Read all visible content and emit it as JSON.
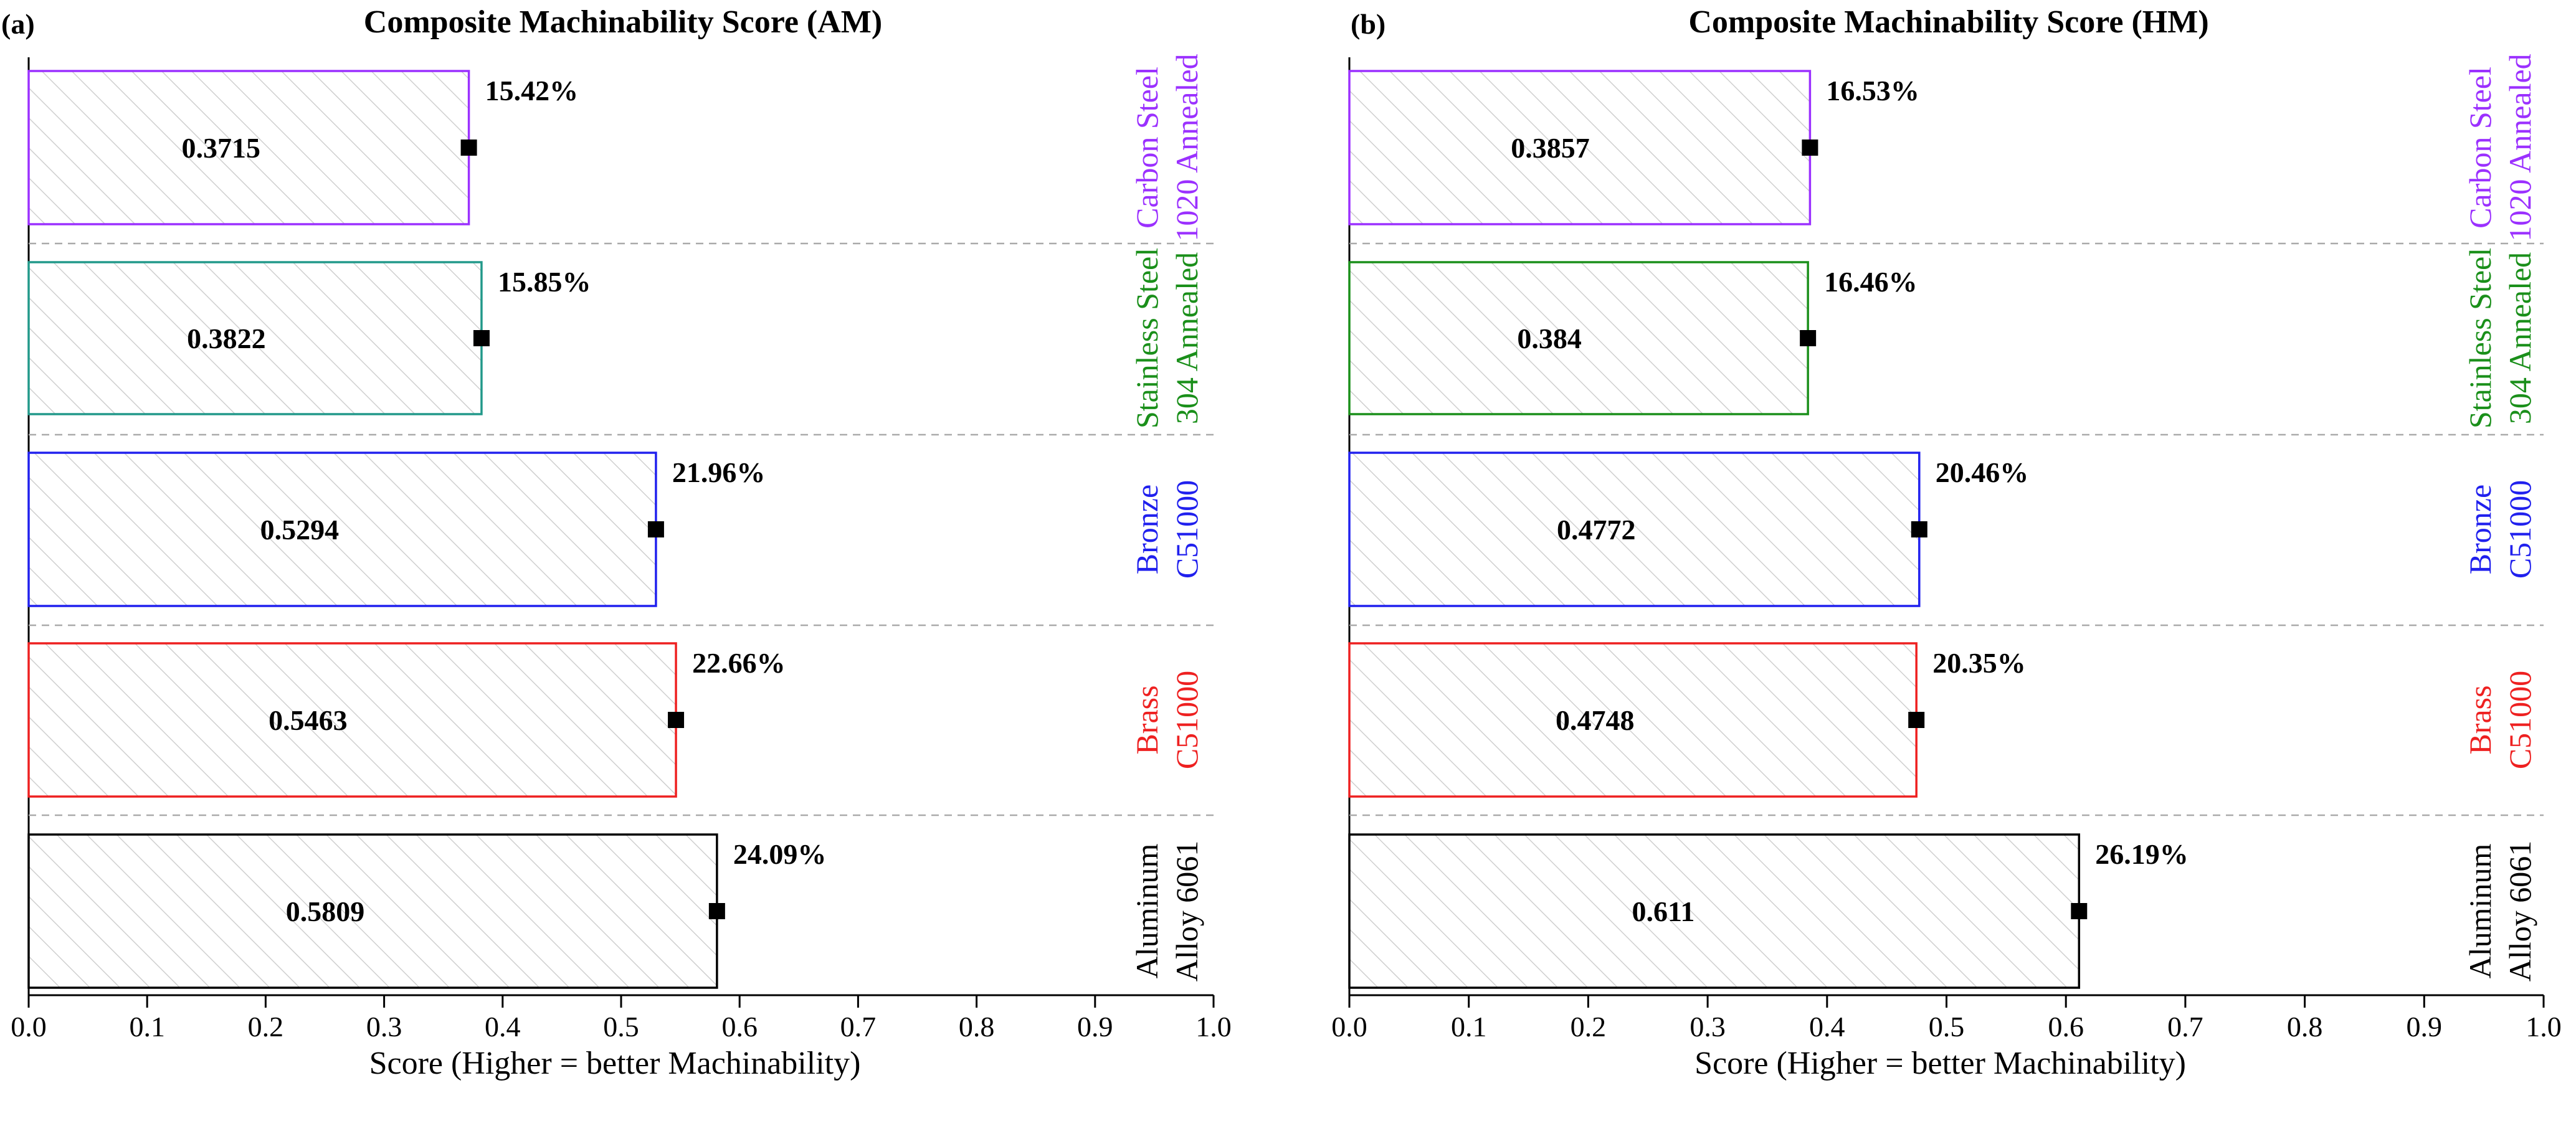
{
  "chart_data": [
    {
      "panel": "(a)",
      "type": "bar",
      "orientation": "horizontal",
      "title": "Composite Machinability Score (AM)",
      "xlabel": "Score (Higher = better Machinability)",
      "xlim": [
        0.0,
        1.0
      ],
      "xticks": [
        "0.0",
        "0.1",
        "0.2",
        "0.3",
        "0.4",
        "0.5",
        "0.6",
        "0.7",
        "0.8",
        "0.9",
        "1.0"
      ],
      "categories": [
        {
          "line1": "Carbon Steel",
          "line2": "1020 Annealed",
          "value": 0.3715,
          "value_label": "0.3715",
          "percent": "15.42%",
          "color": "#9b30ff"
        },
        {
          "line1": "Stainless Steel",
          "line2": "304 Annealed",
          "value": 0.3822,
          "value_label": "0.3822",
          "percent": "15.85%",
          "color": "#22998a",
          "label_color": "#1a8f1a"
        },
        {
          "line1": "Bronze",
          "line2": "C51000",
          "value": 0.5294,
          "value_label": "0.5294",
          "percent": "21.96%",
          "color": "#2020ee"
        },
        {
          "line1": "Brass",
          "line2": "C51000",
          "value": 0.5463,
          "value_label": "0.5463",
          "percent": "22.66%",
          "color": "#ee2020"
        },
        {
          "line1": "Aluminum",
          "line2": "Alloy 6061",
          "value": 0.5809,
          "value_label": "0.5809",
          "percent": "24.09%",
          "color": "#000000"
        }
      ]
    },
    {
      "panel": "(b)",
      "type": "bar",
      "orientation": "horizontal",
      "title": "Composite Machinability Score (HM)",
      "xlabel": "Score (Higher = better Machinability)",
      "xlim": [
        0.0,
        1.0
      ],
      "xticks": [
        "0.0",
        "0.1",
        "0.2",
        "0.3",
        "0.4",
        "0.5",
        "0.6",
        "0.7",
        "0.8",
        "0.9",
        "1.0"
      ],
      "categories": [
        {
          "line1": "Carbon Steel",
          "line2": "1020 Annealed",
          "value": 0.3857,
          "value_label": "0.3857",
          "percent": "16.53%",
          "color": "#9b30ff"
        },
        {
          "line1": "Stainless Steel",
          "line2": "304 Annealed",
          "value": 0.384,
          "value_label": "0.384",
          "percent": "16.46%",
          "color": "#1a8f1a"
        },
        {
          "line1": "Bronze",
          "line2": "C51000",
          "value": 0.4772,
          "value_label": "0.4772",
          "percent": "20.46%",
          "color": "#2020ee"
        },
        {
          "line1": "Brass",
          "line2": "C51000",
          "value": 0.4748,
          "value_label": "0.4748",
          "percent": "20.35%",
          "color": "#ee2020"
        },
        {
          "line1": "Aluminum",
          "line2": "Alloy 6061",
          "value": 0.611,
          "value_label": "0.611",
          "percent": "26.19%",
          "color": "#000000"
        }
      ]
    }
  ]
}
